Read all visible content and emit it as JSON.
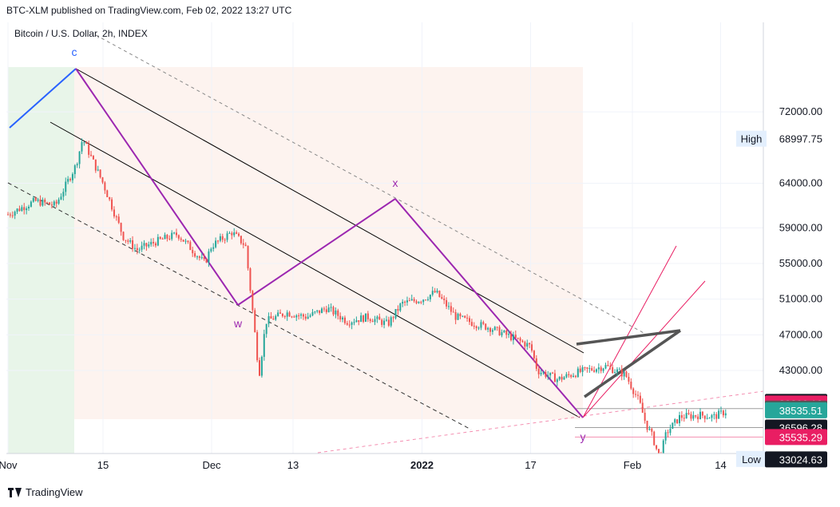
{
  "header": {
    "publisher_line": "BTC-XLM published on TradingView.com, Feb 02, 2022 13:27 UTC"
  },
  "footer": {
    "brand": "TradingView"
  },
  "colors": {
    "up_candle": "#26a69a",
    "down_candle": "#ef5350",
    "wave": "#9c27b0",
    "channel": "#000000",
    "pink": "#e91e63",
    "triangle": "#555555",
    "green_zone": "#e8f5e9",
    "pink_zone": "#fdf3ef",
    "c_label": "#2962ff"
  },
  "chart_data": {
    "type": "candlestick",
    "title": "Bitcoin / U.S. Dollar, 2h, INDEX",
    "x_ticks": [
      "Nov",
      "15",
      "Dec",
      "13",
      "2022",
      "17",
      "Feb",
      "14"
    ],
    "y_ticks": [
      72000,
      64000,
      59000,
      55000,
      51000,
      47000,
      43000
    ],
    "y_tick_labels": [
      "72000.00",
      "64000.00",
      "59000.00",
      "55000.00",
      "51000.00",
      "47000.00",
      "43000.00"
    ],
    "ylim": [
      31500,
      75000
    ],
    "high": {
      "label": "High",
      "value": "68997.75"
    },
    "low": {
      "label": "Low",
      "value": "33076.95"
    },
    "price_labels": [
      {
        "value": "39476.64",
        "style": "black"
      },
      {
        "value": "39296.16",
        "style": "pink"
      },
      {
        "value": "38726.49",
        "style": "gray"
      },
      {
        "value": "38535.51",
        "style": "teal"
      },
      {
        "value": "36596.28",
        "style": "black"
      },
      {
        "value": "35535.29",
        "style": "pink"
      },
      {
        "value": "33024.63",
        "style": "black"
      }
    ],
    "wave_labels": [
      "c",
      "w",
      "x",
      "y"
    ],
    "wave_points": [
      {
        "date": "Nov 10",
        "price": 68998
      },
      {
        "date": "Dec 4",
        "price": 42000
      },
      {
        "date": "Dec 27",
        "price": 51800
      },
      {
        "date": "Jan 24",
        "price": 33077
      }
    ],
    "price_path": [
      [
        0,
        60500
      ],
      [
        4,
        62000
      ],
      [
        7,
        61500
      ],
      [
        10,
        66000
      ],
      [
        11,
        68998
      ],
      [
        14,
        64000
      ],
      [
        17,
        58000
      ],
      [
        19,
        56500
      ],
      [
        22,
        57500
      ],
      [
        25,
        58300
      ],
      [
        29,
        55000
      ],
      [
        30,
        57000
      ],
      [
        33,
        58500
      ],
      [
        35,
        57000
      ],
      [
        36,
        50000
      ],
      [
        37,
        42500
      ],
      [
        38,
        48500
      ],
      [
        41,
        49500
      ],
      [
        44,
        49000
      ],
      [
        47,
        50000
      ],
      [
        50,
        48500
      ],
      [
        53,
        49000
      ],
      [
        56,
        48200
      ],
      [
        58,
        50500
      ],
      [
        61,
        51000
      ],
      [
        63,
        51800
      ],
      [
        66,
        49000
      ],
      [
        69,
        48200
      ],
      [
        71,
        47800
      ],
      [
        74,
        46800
      ],
      [
        77,
        45700
      ],
      [
        78,
        43000
      ],
      [
        81,
        42000
      ],
      [
        84,
        42800
      ],
      [
        88,
        43500
      ],
      [
        91,
        42500
      ],
      [
        93,
        39500
      ],
      [
        94,
        37000
      ],
      [
        95,
        35500
      ],
      [
        96,
        33077
      ],
      [
        97,
        36000
      ],
      [
        99,
        37800
      ],
      [
        102,
        38000
      ],
      [
        104,
        37800
      ],
      [
        106,
        38500
      ]
    ]
  }
}
